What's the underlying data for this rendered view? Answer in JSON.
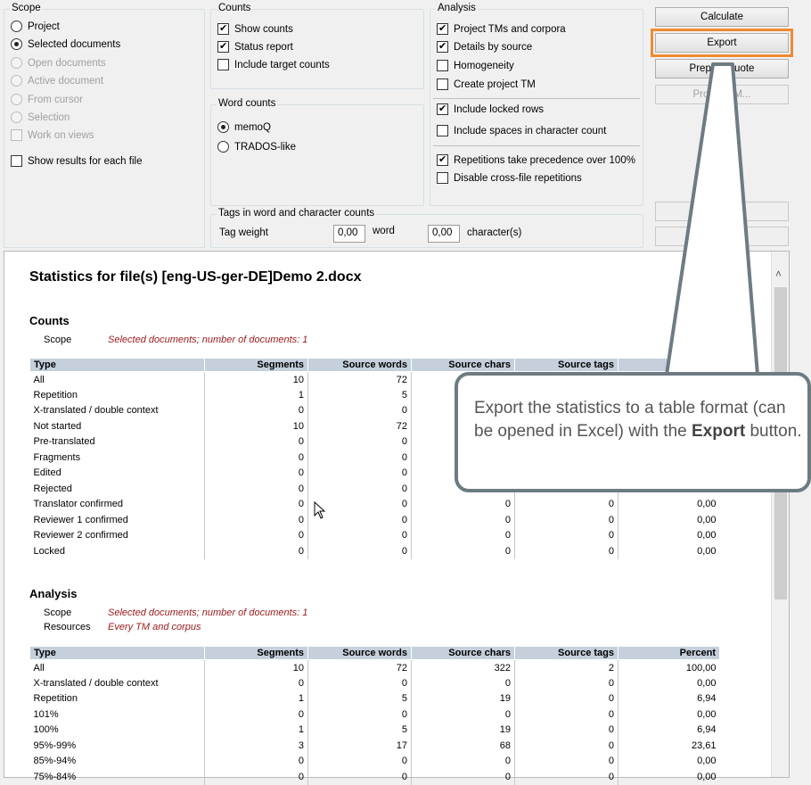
{
  "scope": {
    "title": "Scope",
    "options": [
      {
        "label": "Project",
        "selected": false,
        "enabled": true
      },
      {
        "label": "Selected documents",
        "selected": true,
        "enabled": true
      },
      {
        "label": "Open documents",
        "selected": false,
        "enabled": false
      },
      {
        "label": "Active document",
        "selected": false,
        "enabled": false
      },
      {
        "label": "From cursor",
        "selected": false,
        "enabled": false
      },
      {
        "label": "Selection",
        "selected": false,
        "enabled": false
      }
    ],
    "work_on_views": "Work on views",
    "show_each_file": "Show results for each file"
  },
  "counts": {
    "title": "Counts",
    "show_counts": "Show counts",
    "status_report": "Status report",
    "include_target": "Include target counts"
  },
  "word_counts": {
    "title": "Word counts",
    "memoq": "memoQ",
    "trados": "TRADOS-like"
  },
  "tags": {
    "title": "Tags in word and character counts",
    "tag_weight": "Tag weight",
    "word_value": "0,00",
    "word_unit": "word",
    "char_value": "0,00",
    "char_unit": "character(s)"
  },
  "analysis": {
    "title": "Analysis",
    "project_tms": "Project TMs and corpora",
    "details_by_source": "Details by source",
    "homogeneity": "Homogeneity",
    "create_project_tm": "Create project TM",
    "include_locked": "Include locked rows",
    "include_spaces": "Include spaces in character count",
    "repetitions_precedence": "Repetitions take precedence over 100%",
    "disable_crossfile": "Disable cross-file repetitions"
  },
  "buttons": {
    "calculate": "Calculate",
    "export": "Export",
    "prepare_quote": "Prepare quote",
    "project_tm": "Project TM..."
  },
  "report": {
    "title": "Statistics for file(s) [eng-US-ger-DE]Demo 2.docx",
    "counts_heading": "Counts",
    "scope_label": "Scope",
    "scope_value": "Selected documents; number of documents: 1",
    "analysis_heading": "Analysis",
    "resources_label": "Resources",
    "resources_value": "Every TM and corpus",
    "headers": [
      "Type",
      "Segments",
      "Source words",
      "Source chars",
      "Source tags",
      "Percent"
    ],
    "counts_rows": [
      [
        "All",
        "10",
        "72",
        "",
        "",
        ""
      ],
      [
        "Repetition",
        "1",
        "5",
        "",
        "",
        ""
      ],
      [
        "X-translated / double context",
        "0",
        "0",
        "",
        "",
        ""
      ],
      [
        "Not started",
        "10",
        "72",
        "",
        "",
        ""
      ],
      [
        "Pre-translated",
        "0",
        "0",
        "",
        "",
        ""
      ],
      [
        "Fragments",
        "0",
        "0",
        "",
        "",
        ""
      ],
      [
        "Edited",
        "0",
        "0",
        "",
        "",
        ""
      ],
      [
        "Rejected",
        "0",
        "0",
        "",
        "",
        ""
      ],
      [
        "Translator confirmed",
        "0",
        "0",
        "0",
        "0",
        "0,00"
      ],
      [
        "Reviewer 1 confirmed",
        "0",
        "0",
        "0",
        "0",
        "0,00"
      ],
      [
        "Reviewer 2 confirmed",
        "0",
        "0",
        "0",
        "0",
        "0,00"
      ],
      [
        "Locked",
        "0",
        "0",
        "0",
        "0",
        "0,00"
      ]
    ],
    "analysis_rows": [
      [
        "All",
        "10",
        "72",
        "322",
        "2",
        "100,00"
      ],
      [
        "X-translated / double context",
        "0",
        "0",
        "0",
        "0",
        "0,00"
      ],
      [
        "Repetition",
        "1",
        "5",
        "19",
        "0",
        "6,94"
      ],
      [
        "101%",
        "0",
        "0",
        "0",
        "0",
        "0,00"
      ],
      [
        "100%",
        "1",
        "5",
        "19",
        "0",
        "6,94"
      ],
      [
        "95%-99%",
        "3",
        "17",
        "68",
        "0",
        "23,61"
      ],
      [
        "85%-94%",
        "0",
        "0",
        "0",
        "0",
        "0,00"
      ],
      [
        "75%-84%",
        "0",
        "0",
        "0",
        "0",
        "0,00"
      ]
    ]
  },
  "callout": {
    "text_before": "Export the statistics to a table format (can be opened in Excel) with the ",
    "text_bold": "Export",
    "text_after": " button."
  }
}
